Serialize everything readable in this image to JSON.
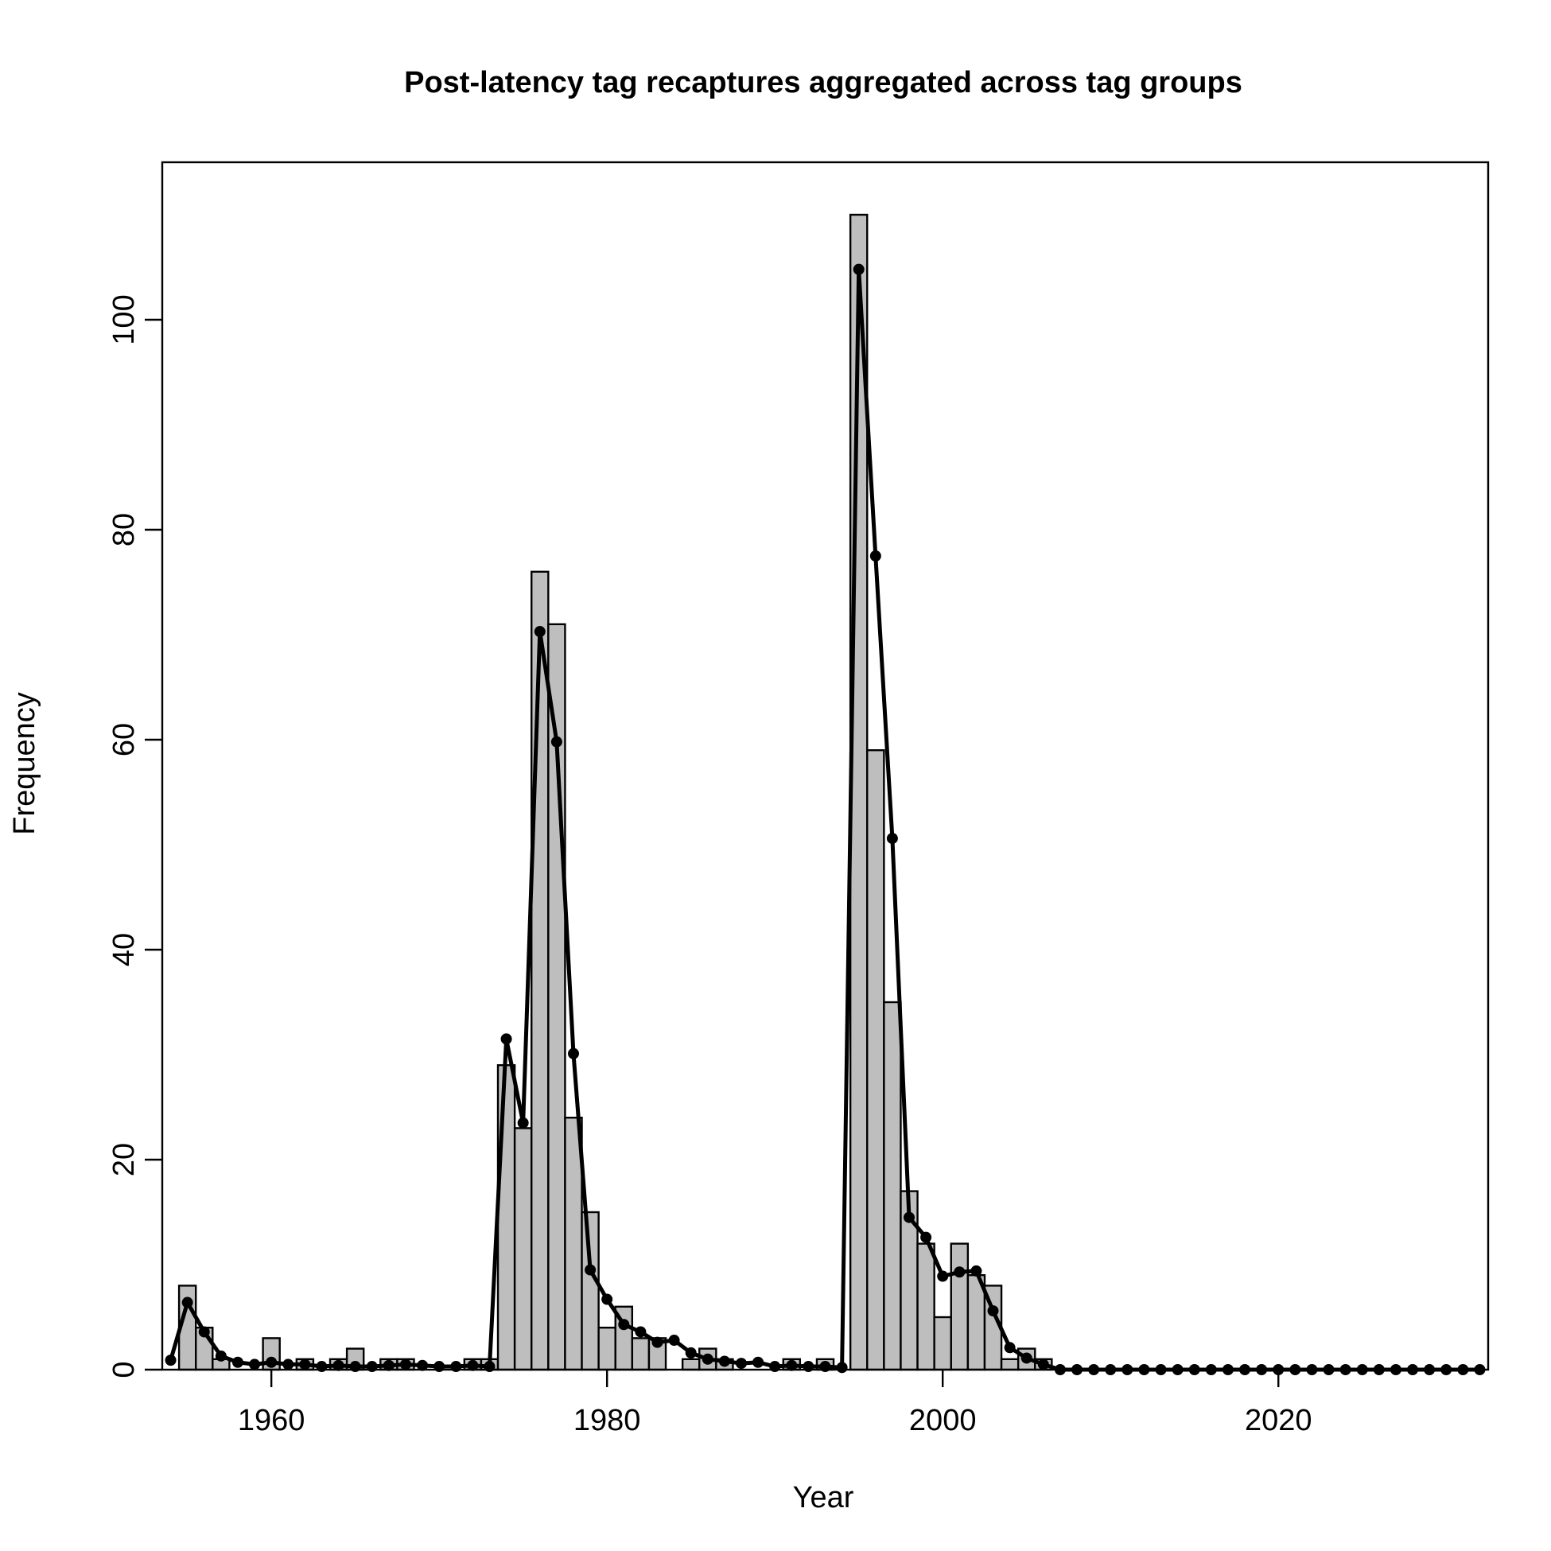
{
  "chart_data": {
    "type": "bar",
    "title": "Post-latency tag recaptures aggregated across tag groups",
    "xlabel": "Year",
    "ylabel": "Frequency",
    "xlim": [
      1953.5,
      2032.5
    ],
    "ylim": [
      0,
      115
    ],
    "x_ticks": [
      1960,
      1980,
      2000,
      2020
    ],
    "y_ticks": [
      0,
      20,
      40,
      60,
      80,
      100
    ],
    "bar_color": "#bebebe",
    "line_color": "#000000",
    "years": [
      1954,
      1955,
      1956,
      1957,
      1958,
      1959,
      1960,
      1961,
      1962,
      1963,
      1964,
      1965,
      1966,
      1967,
      1968,
      1969,
      1970,
      1971,
      1972,
      1973,
      1974,
      1975,
      1976,
      1977,
      1978,
      1979,
      1980,
      1981,
      1982,
      1983,
      1984,
      1985,
      1986,
      1987,
      1988,
      1989,
      1990,
      1991,
      1992,
      1993,
      1994,
      1995,
      1996,
      1997,
      1998,
      1999,
      2000,
      2001,
      2002,
      2003,
      2004,
      2005,
      2006,
      2007,
      2008,
      2009,
      2010,
      2011,
      2012,
      2013,
      2014,
      2015,
      2016,
      2017,
      2018,
      2019,
      2020,
      2021,
      2022,
      2023,
      2024,
      2025,
      2026,
      2027,
      2028,
      2029,
      2030,
      2031,
      2032
    ],
    "series": [
      {
        "type": "bar",
        "values": [
          0,
          8,
          4,
          1,
          0,
          0,
          3,
          0,
          1,
          0,
          1,
          2,
          0,
          1,
          1,
          0,
          0,
          0,
          1,
          1,
          29,
          23,
          76,
          71,
          24,
          15,
          4,
          6,
          3,
          3,
          0,
          1,
          2,
          1,
          0,
          0,
          0,
          1,
          0,
          1,
          0,
          110,
          59,
          35,
          17,
          12,
          5,
          12,
          9,
          8,
          1,
          2,
          1,
          0,
          0,
          0,
          0,
          0,
          0,
          0,
          0,
          0,
          0,
          0,
          0,
          0,
          0,
          0,
          0,
          0,
          0,
          0,
          0,
          0,
          0,
          0,
          0,
          0,
          0
        ]
      },
      {
        "type": "line",
        "values": [
          0.9,
          6.4,
          3.6,
          1.3,
          0.7,
          0.5,
          0.7,
          0.5,
          0.5,
          0.3,
          0.4,
          0.3,
          0.3,
          0.4,
          0.5,
          0.4,
          0.3,
          0.3,
          0.4,
          0.3,
          31.5,
          23.5,
          70.3,
          59.8,
          30.1,
          9.5,
          6.7,
          4.3,
          3.6,
          2.6,
          2.8,
          1.6,
          1.0,
          0.8,
          0.6,
          0.7,
          0.3,
          0.4,
          0.3,
          0.3,
          0.2,
          104.8,
          77.5,
          50.6,
          14.5,
          12.6,
          8.9,
          9.3,
          9.4,
          5.6,
          2.1,
          1.1,
          0.5,
          0,
          0,
          0,
          0,
          0,
          0,
          0,
          0,
          0,
          0,
          0,
          0,
          0,
          0,
          0,
          0,
          0,
          0,
          0,
          0,
          0,
          0,
          0,
          0,
          0,
          0
        ]
      }
    ]
  }
}
